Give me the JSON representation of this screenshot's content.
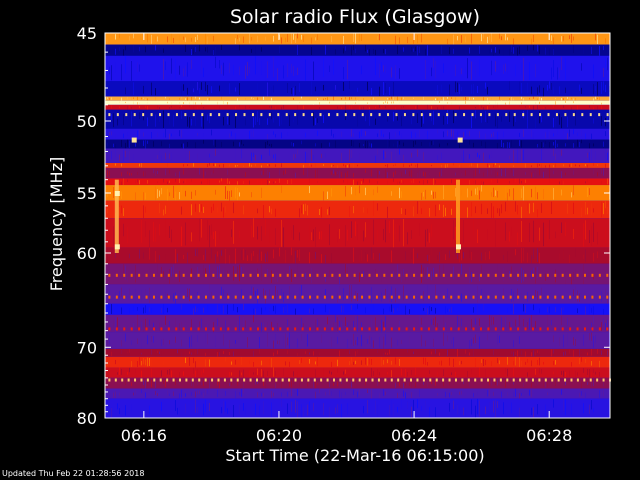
{
  "chart_data": {
    "type": "heatmap",
    "title": "Solar radio Flux (Glasgow)",
    "xlabel": "Start Time (22-Mar-16 06:15:00)",
    "ylabel": "Frequency [MHz]",
    "x_ticks": [
      {
        "label": "06:16",
        "minutes_after_start": 1
      },
      {
        "label": "06:20",
        "minutes_after_start": 5
      },
      {
        "label": "06:24",
        "minutes_after_start": 9
      },
      {
        "label": "06:28",
        "minutes_after_start": 13
      }
    ],
    "x_range_minutes_after_start": [
      -0.15,
      14.8
    ],
    "y_ticks": [
      45,
      50,
      55,
      60,
      70,
      80
    ],
    "y_range_mhz": [
      45,
      80
    ],
    "y_scale": "reciprocal",
    "colormap": [
      "#000060",
      "#1010ff",
      "#5a1aa0",
      "#a00a30",
      "#e81010",
      "#ff8a00",
      "#ffffc8"
    ],
    "frequency_bands": [
      {
        "from_mhz": 45.0,
        "to_mhz": 45.6,
        "level": 0.85
      },
      {
        "from_mhz": 45.6,
        "to_mhz": 46.2,
        "level": 0.05
      },
      {
        "from_mhz": 46.2,
        "to_mhz": 47.6,
        "level": 0.2
      },
      {
        "from_mhz": 47.6,
        "to_mhz": 48.5,
        "level": 0.1
      },
      {
        "from_mhz": 48.5,
        "to_mhz": 48.75,
        "level": 0.88
      },
      {
        "from_mhz": 48.75,
        "to_mhz": 49.0,
        "level": 1.0
      },
      {
        "from_mhz": 49.0,
        "to_mhz": 49.3,
        "level": 0.6
      },
      {
        "from_mhz": 49.3,
        "to_mhz": 50.5,
        "level": 0.08
      },
      {
        "from_mhz": 50.5,
        "to_mhz": 51.2,
        "level": 0.22
      },
      {
        "from_mhz": 51.2,
        "to_mhz": 51.8,
        "level": 0.04
      },
      {
        "from_mhz": 51.8,
        "to_mhz": 52.8,
        "level": 0.28
      },
      {
        "from_mhz": 52.8,
        "to_mhz": 53.15,
        "level": 0.72
      },
      {
        "from_mhz": 53.15,
        "to_mhz": 53.9,
        "level": 0.45
      },
      {
        "from_mhz": 53.9,
        "to_mhz": 54.4,
        "level": 0.66
      },
      {
        "from_mhz": 54.4,
        "to_mhz": 55.6,
        "level": 0.82
      },
      {
        "from_mhz": 55.6,
        "to_mhz": 57.0,
        "level": 0.7
      },
      {
        "from_mhz": 57.0,
        "to_mhz": 59.5,
        "level": 0.6
      },
      {
        "from_mhz": 59.5,
        "to_mhz": 61.0,
        "level": 0.52
      },
      {
        "from_mhz": 61.0,
        "to_mhz": 63.0,
        "level": 0.4
      },
      {
        "from_mhz": 63.0,
        "to_mhz": 65.0,
        "level": 0.33
      },
      {
        "from_mhz": 65.0,
        "to_mhz": 66.2,
        "level": 0.18
      },
      {
        "from_mhz": 66.2,
        "to_mhz": 68.2,
        "level": 0.36
      },
      {
        "from_mhz": 68.2,
        "to_mhz": 70.2,
        "level": 0.33
      },
      {
        "from_mhz": 70.2,
        "to_mhz": 71.2,
        "level": 0.5
      },
      {
        "from_mhz": 71.2,
        "to_mhz": 72.6,
        "level": 0.7
      },
      {
        "from_mhz": 72.6,
        "to_mhz": 74.0,
        "level": 0.6
      },
      {
        "from_mhz": 74.0,
        "to_mhz": 75.5,
        "level": 0.45
      },
      {
        "from_mhz": 75.5,
        "to_mhz": 77.0,
        "level": 0.3
      },
      {
        "from_mhz": 77.0,
        "to_mhz": 80.0,
        "level": 0.22
      }
    ],
    "dotted_lines": [
      {
        "freq_mhz": 49.6,
        "level": 0.95,
        "spacing_minutes": 0.25
      },
      {
        "freq_mhz": 62.1,
        "level": 0.78,
        "spacing_minutes": 0.22
      },
      {
        "freq_mhz": 64.3,
        "level": 0.78,
        "spacing_minutes": 0.22
      },
      {
        "freq_mhz": 67.8,
        "level": 0.68,
        "spacing_minutes": 0.22
      },
      {
        "freq_mhz": 74.3,
        "level": 0.92,
        "spacing_minutes": 0.19
      }
    ],
    "events": [
      {
        "time_minutes_after_start": 0.2,
        "from_mhz": 54.0,
        "to_mhz": 60.0,
        "level": 0.9
      },
      {
        "time_minutes_after_start": 10.3,
        "from_mhz": 54.0,
        "to_mhz": 60.0,
        "level": 0.86
      }
    ],
    "hot_spots": [
      {
        "time_minutes_after_start": 0.2,
        "freq_mhz": 55.0,
        "level": 0.98
      },
      {
        "time_minutes_after_start": 0.2,
        "freq_mhz": 59.4,
        "level": 0.98
      },
      {
        "time_minutes_after_start": 10.3,
        "freq_mhz": 59.4,
        "level": 0.98
      },
      {
        "time_minutes_after_start": 0.7,
        "freq_mhz": 51.2,
        "level": 0.96
      },
      {
        "time_minutes_after_start": 10.35,
        "freq_mhz": 51.2,
        "level": 0.96
      }
    ]
  },
  "footer": {
    "updated": "Updated Thu Feb 22 01:28:56 2018"
  }
}
